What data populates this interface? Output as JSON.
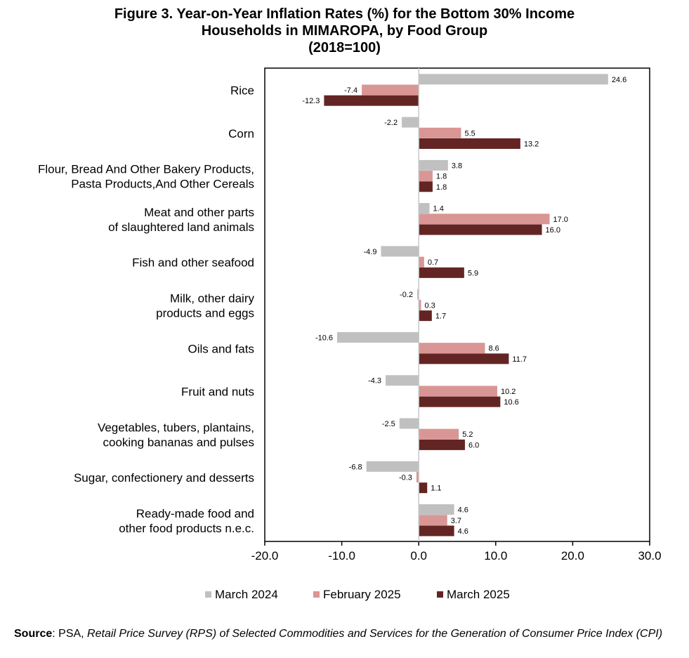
{
  "title": {
    "line1": "Figure 3. Year-on-Year Inflation Rates (%) for the Bottom 30% Income",
    "line2": "Households in MIMAROPA, by Food Group",
    "line3": "(2018=100)"
  },
  "source": {
    "label": "Source",
    "prefix": ": PSA, ",
    "text": "Retail Price Survey (RPS) of Selected Commodities and Services for the Generation of Consumer Price Index (CPI)"
  },
  "colors": {
    "march_2024": "#c0c0c0",
    "february_2025": "#d99694",
    "march_2025": "#632523"
  },
  "chart_data": {
    "type": "bar",
    "orientation": "horizontal",
    "categories": [
      [
        "Rice"
      ],
      [
        "Corn"
      ],
      [
        "Flour, Bread And Other Bakery Products,",
        "Pasta Products,And Other Cereals"
      ],
      [
        "Meat and other parts",
        "of slaughtered land animals"
      ],
      [
        "Fish and other seafood"
      ],
      [
        "Milk, other dairy",
        "products and eggs"
      ],
      [
        "Oils and fats"
      ],
      [
        "Fruit and nuts"
      ],
      [
        "Vegetables, tubers, plantains,",
        "cooking bananas and pulses"
      ],
      [
        "Sugar, confectionery and desserts"
      ],
      [
        "Ready-made food and",
        "other food products n.e.c."
      ]
    ],
    "series": [
      {
        "name": "March 2024",
        "color": "#c0c0c0",
        "values": [
          24.6,
          -2.2,
          3.8,
          1.4,
          -4.9,
          -0.2,
          -10.6,
          -4.3,
          -2.5,
          -6.8,
          4.6
        ]
      },
      {
        "name": "February 2025",
        "color": "#d99694",
        "values": [
          -7.4,
          5.5,
          1.8,
          17.0,
          0.7,
          0.3,
          8.6,
          10.2,
          5.2,
          -0.3,
          3.7
        ]
      },
      {
        "name": "March 2025",
        "color": "#632523",
        "values": [
          -12.3,
          13.2,
          1.8,
          16.0,
          5.9,
          1.7,
          11.7,
          10.6,
          6.0,
          1.1,
          4.6
        ]
      }
    ],
    "xlim": [
      -20,
      30
    ],
    "xticks": [
      -20,
      -10,
      0,
      10,
      20,
      30
    ],
    "tick_labels": [
      "-20.0",
      "-10.0",
      "0.0",
      "10.0",
      "20.0",
      "30.0"
    ],
    "legend_position": "bottom",
    "grid": false
  }
}
